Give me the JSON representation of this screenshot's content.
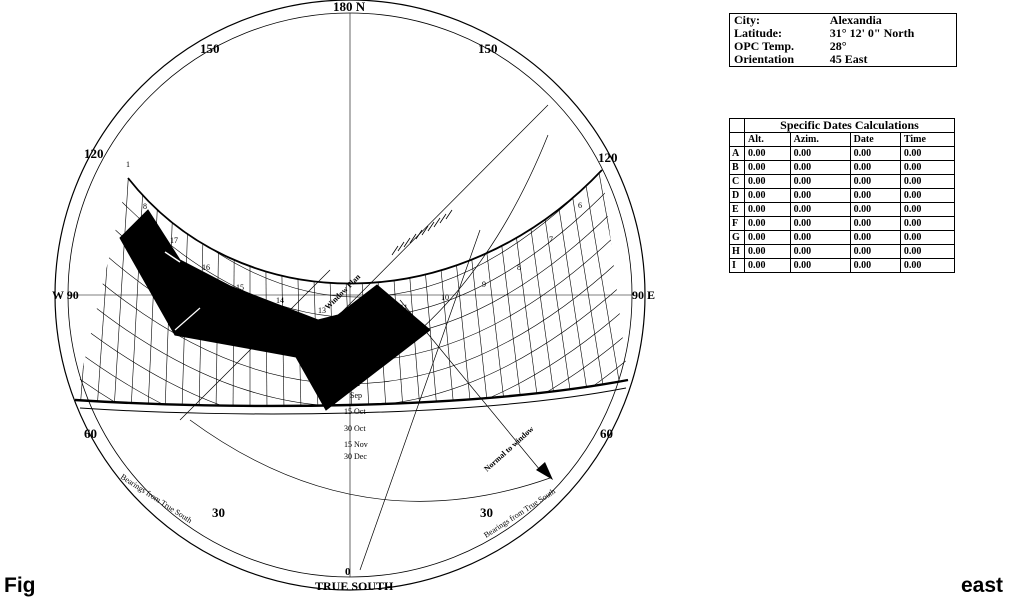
{
  "compass": {
    "north": "180 N",
    "south": "TRUE SOUTH",
    "west": "W 90",
    "east": "90 E",
    "south_zero": "0",
    "deg_150_left": "150",
    "deg_150_right": "150",
    "deg_120_left": "120",
    "deg_120_right": "120",
    "deg_60_left": "60",
    "deg_60_right": "60",
    "deg_30_left": "30",
    "deg_30_right": "30",
    "bearing_left": "Bearings from True South",
    "bearing_right": "Bearings from True South"
  },
  "annotations": {
    "window_plan": "Window Plan",
    "normal": "Normal to window"
  },
  "hours": [
    "1",
    "8",
    "17",
    "16",
    "15",
    "14",
    "13",
    "11",
    "10",
    "9",
    "8",
    "7",
    "6"
  ],
  "dates": [
    "Sep",
    "Sep",
    "15 Oct",
    "30 Oct",
    "15 Nov",
    "30 Dec"
  ],
  "info": {
    "rows": [
      {
        "label": "City:",
        "value": "Alexandia"
      },
      {
        "label": "Latitude:",
        "value": "31° 12' 0\" North"
      },
      {
        "label": "OPC Temp.",
        "value": "28°"
      },
      {
        "label": "Orientation",
        "value": "45 East"
      }
    ]
  },
  "calc": {
    "title": "Specific Dates Calculations",
    "headers": [
      "Alt.",
      "Azim.",
      "Date",
      "Time"
    ],
    "rows": [
      {
        "id": "A",
        "alt": "0.00",
        "azim": "0.00",
        "date": "0.00",
        "time": "0.00"
      },
      {
        "id": "B",
        "alt": "0.00",
        "azim": "0.00",
        "date": "0.00",
        "time": "0.00"
      },
      {
        "id": "C",
        "alt": "0.00",
        "azim": "0.00",
        "date": "0.00",
        "time": "0.00"
      },
      {
        "id": "D",
        "alt": "0.00",
        "azim": "0.00",
        "date": "0.00",
        "time": "0.00"
      },
      {
        "id": "E",
        "alt": "0.00",
        "azim": "0.00",
        "date": "0.00",
        "time": "0.00"
      },
      {
        "id": "F",
        "alt": "0.00",
        "azim": "0.00",
        "date": "0.00",
        "time": "0.00"
      },
      {
        "id": "G",
        "alt": "0.00",
        "azim": "0.00",
        "date": "0.00",
        "time": "0.00"
      },
      {
        "id": "H",
        "alt": "0.00",
        "azim": "0.00",
        "date": "0.00",
        "time": "0.00"
      },
      {
        "id": "I",
        "alt": "0.00",
        "azim": "0.00",
        "date": "0.00",
        "time": "0.00"
      }
    ]
  },
  "caption": {
    "left": "Fig",
    "right": "east"
  }
}
